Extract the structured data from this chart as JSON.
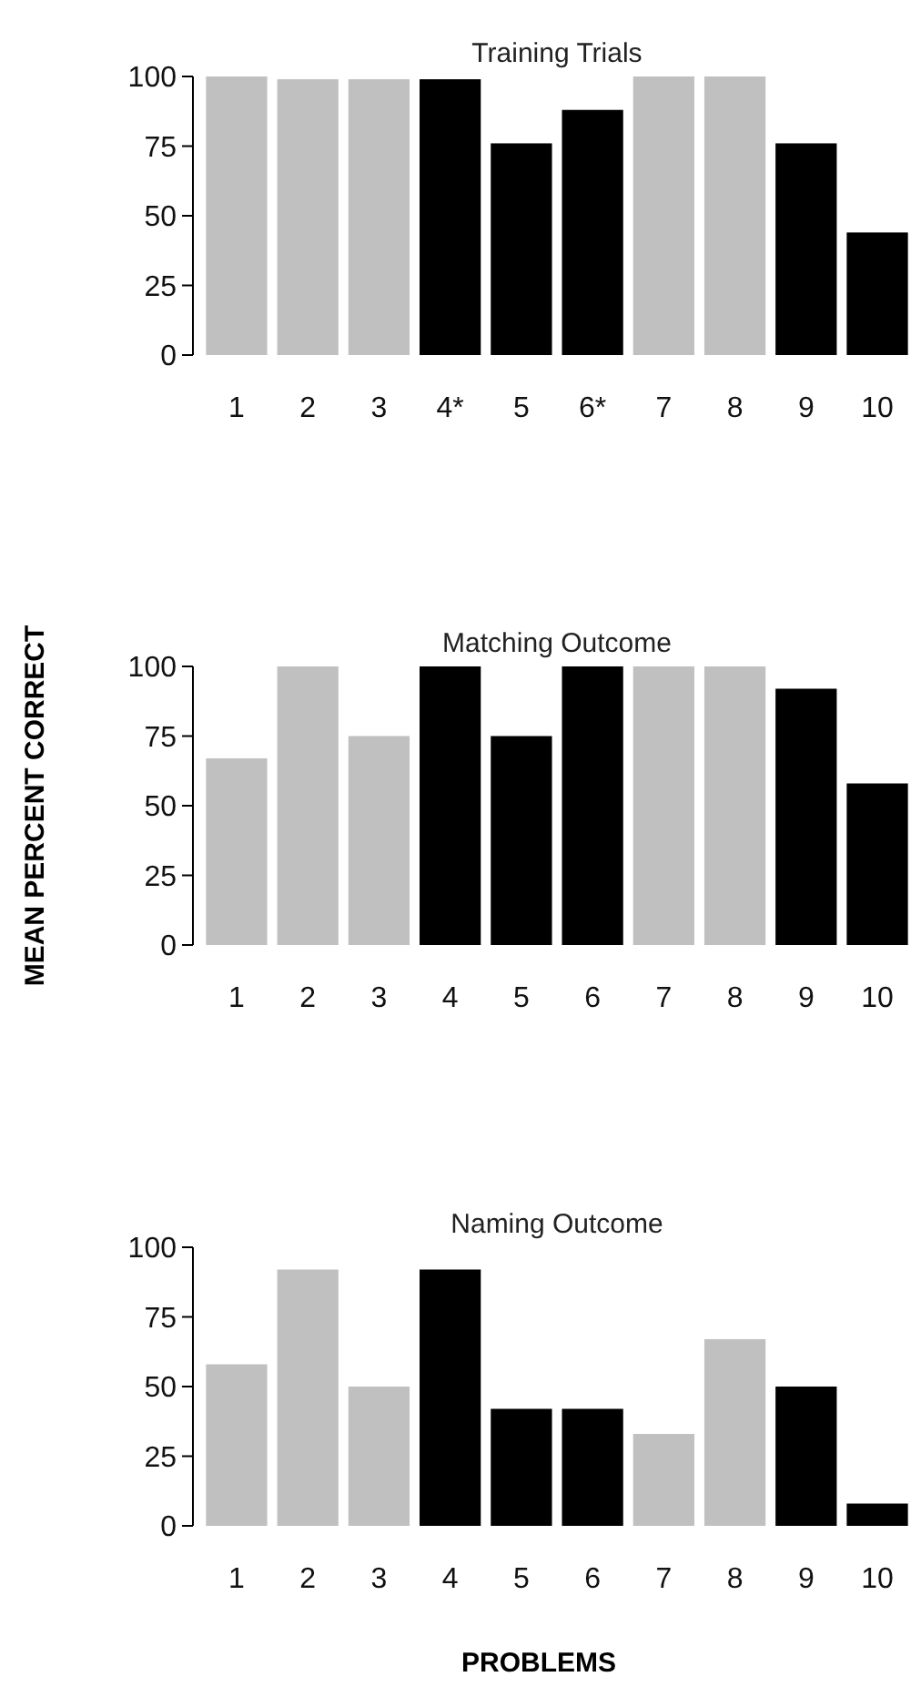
{
  "chart_data": [
    {
      "type": "bar",
      "title": "Training Trials",
      "categories": [
        "1",
        "2",
        "3",
        "4*",
        "5",
        "6*",
        "7",
        "8",
        "9",
        "10"
      ],
      "values": [
        100,
        99,
        99,
        99,
        76,
        88,
        100,
        100,
        76,
        44
      ],
      "colors": [
        "#c0c0c0",
        "#c0c0c0",
        "#c0c0c0",
        "#000000",
        "#000000",
        "#000000",
        "#c0c0c0",
        "#c0c0c0",
        "#000000",
        "#000000"
      ],
      "ylim": [
        0,
        100
      ],
      "yticks": [
        0,
        25,
        50,
        75,
        100
      ]
    },
    {
      "type": "bar",
      "title": "Matching Outcome",
      "ylabel": "MEAN PERCENT CORRECT",
      "categories": [
        "1",
        "2",
        "3",
        "4",
        "5",
        "6",
        "7",
        "8",
        "9",
        "10"
      ],
      "values": [
        67,
        100,
        75,
        100,
        75,
        100,
        100,
        100,
        92,
        58
      ],
      "colors": [
        "#c0c0c0",
        "#c0c0c0",
        "#c0c0c0",
        "#000000",
        "#000000",
        "#000000",
        "#c0c0c0",
        "#c0c0c0",
        "#000000",
        "#000000"
      ],
      "ylim": [
        0,
        100
      ],
      "yticks": [
        0,
        25,
        50,
        75,
        100
      ]
    },
    {
      "type": "bar",
      "title": "Naming Outcome",
      "xlabel": "PROBLEMS",
      "categories": [
        "1",
        "2",
        "3",
        "4",
        "5",
        "6",
        "7",
        "8",
        "9",
        "10"
      ],
      "values": [
        58,
        92,
        50,
        92,
        42,
        42,
        33,
        67,
        50,
        8
      ],
      "colors": [
        "#c0c0c0",
        "#c0c0c0",
        "#c0c0c0",
        "#000000",
        "#000000",
        "#000000",
        "#c0c0c0",
        "#c0c0c0",
        "#000000",
        "#000000"
      ],
      "ylim": [
        0,
        100
      ],
      "yticks": [
        0,
        25,
        50,
        75,
        100
      ]
    }
  ]
}
